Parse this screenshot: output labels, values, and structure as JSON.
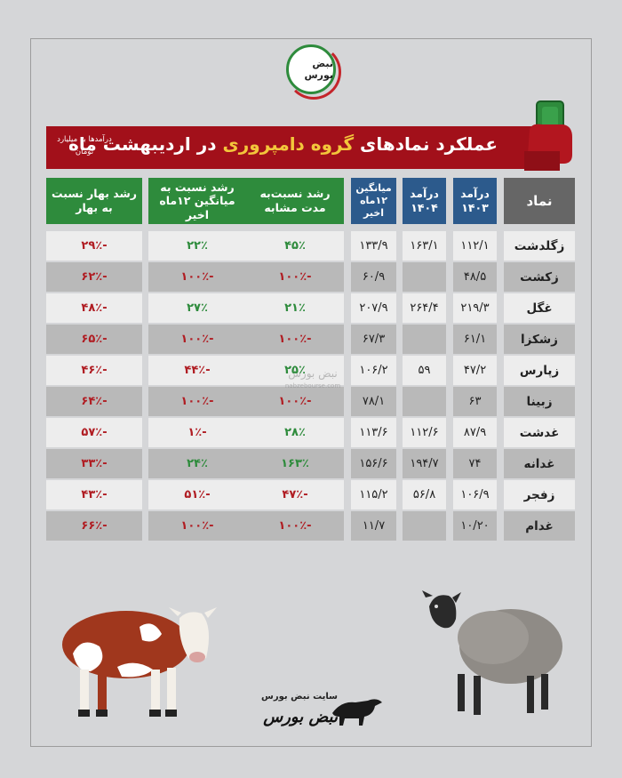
{
  "logo": {
    "text": "نبض بورس"
  },
  "banner": {
    "title_part1": "عملکرد نمادهای ",
    "title_highlight": "گروه دامپروری",
    "title_part2": " در اردیبهشت ماه",
    "note": "درآمدها به میلیارد تومان"
  },
  "headers": {
    "symbol": "نماد",
    "rev1403": "درآمد ۱۴۰۳",
    "rev1404": "درآمد ۱۴۰۴",
    "avg12": "میانگین ۱۲ماه اخیر",
    "growth_same": "رشد نسبت‌به مدت مشابه",
    "growth_avg": "رشد نسبت به میانگین ۱۲ماه اخیر",
    "growth_spring": "رشد بهار نسبت به بهار"
  },
  "rows": [
    {
      "name": "زگلدشت",
      "rev1403": "۱۱۲/۱",
      "rev1404": "۱۶۳/۱",
      "avg12": "۱۳۳/۹",
      "g_same": "۴۵٪",
      "g_avg": "۲۲٪",
      "g_spring": "-۲۹٪"
    },
    {
      "name": "زکشت",
      "rev1403": "۴۸/۵",
      "rev1404": "",
      "avg12": "۶۰/۹",
      "g_same": "-۱۰۰٪",
      "g_avg": "-۱۰۰٪",
      "g_spring": "-۶۲٪"
    },
    {
      "name": "غگل",
      "rev1403": "۲۱۹/۳",
      "rev1404": "۲۶۴/۴",
      "avg12": "۲۰۷/۹",
      "g_same": "۲۱٪",
      "g_avg": "۲۷٪",
      "g_spring": "-۴۸٪"
    },
    {
      "name": "زشکزا",
      "rev1403": "۶۱/۱",
      "rev1404": "",
      "avg12": "۶۷/۳",
      "g_same": "-۱۰۰٪",
      "g_avg": "-۱۰۰٪",
      "g_spring": "-۶۵٪"
    },
    {
      "name": "زپارس",
      "rev1403": "۴۷/۲",
      "rev1404": "۵۹",
      "avg12": "۱۰۶/۲",
      "g_same": "۲۵٪",
      "g_avg": "-۴۴٪",
      "g_spring": "-۴۶٪"
    },
    {
      "name": "زبینا",
      "rev1403": "۶۳",
      "rev1404": "",
      "avg12": "۷۸/۱",
      "g_same": "-۱۰۰٪",
      "g_avg": "-۱۰۰٪",
      "g_spring": "-۶۴٪"
    },
    {
      "name": "غدشت",
      "rev1403": "۸۷/۹",
      "rev1404": "۱۱۲/۶",
      "avg12": "۱۱۳/۶",
      "g_same": "۲۸٪",
      "g_avg": "-۱٪",
      "g_spring": "-۵۷٪"
    },
    {
      "name": "غدانه",
      "rev1403": "۷۴",
      "rev1404": "۱۹۴/۷",
      "avg12": "۱۵۶/۶",
      "g_same": "۱۶۳٪",
      "g_avg": "۲۴٪",
      "g_spring": "-۳۳٪"
    },
    {
      "name": "زفجر",
      "rev1403": "۱۰۶/۹",
      "rev1404": "۵۶/۸",
      "avg12": "۱۱۵/۲",
      "g_same": "-۴۷٪",
      "g_avg": "-۵۱٪",
      "g_spring": "-۴۳٪"
    },
    {
      "name": "غدام",
      "rev1403": "۱۰/۲۰",
      "rev1404": "",
      "avg12": "۱۱/۷",
      "g_same": "-۱۰۰٪",
      "g_avg": "-۱۰۰٪",
      "g_spring": "-۶۶٪"
    }
  ],
  "watermark": {
    "text": "نبض بورس",
    "url": "nabzebourse.com"
  },
  "footer": {
    "site": "سایت نبض بورس",
    "brand": "نبض بورس"
  },
  "colors": {
    "green": "#2e8b3c",
    "blue": "#2c5a8c",
    "red": "#b01d23",
    "banner": "#a2101a",
    "highlight": "#f3c63b"
  },
  "icons": {
    "hand": "hand-holding-card-icon",
    "cow": "cow-icon",
    "sheep": "sheep-icon",
    "bull": "bull-icon"
  }
}
